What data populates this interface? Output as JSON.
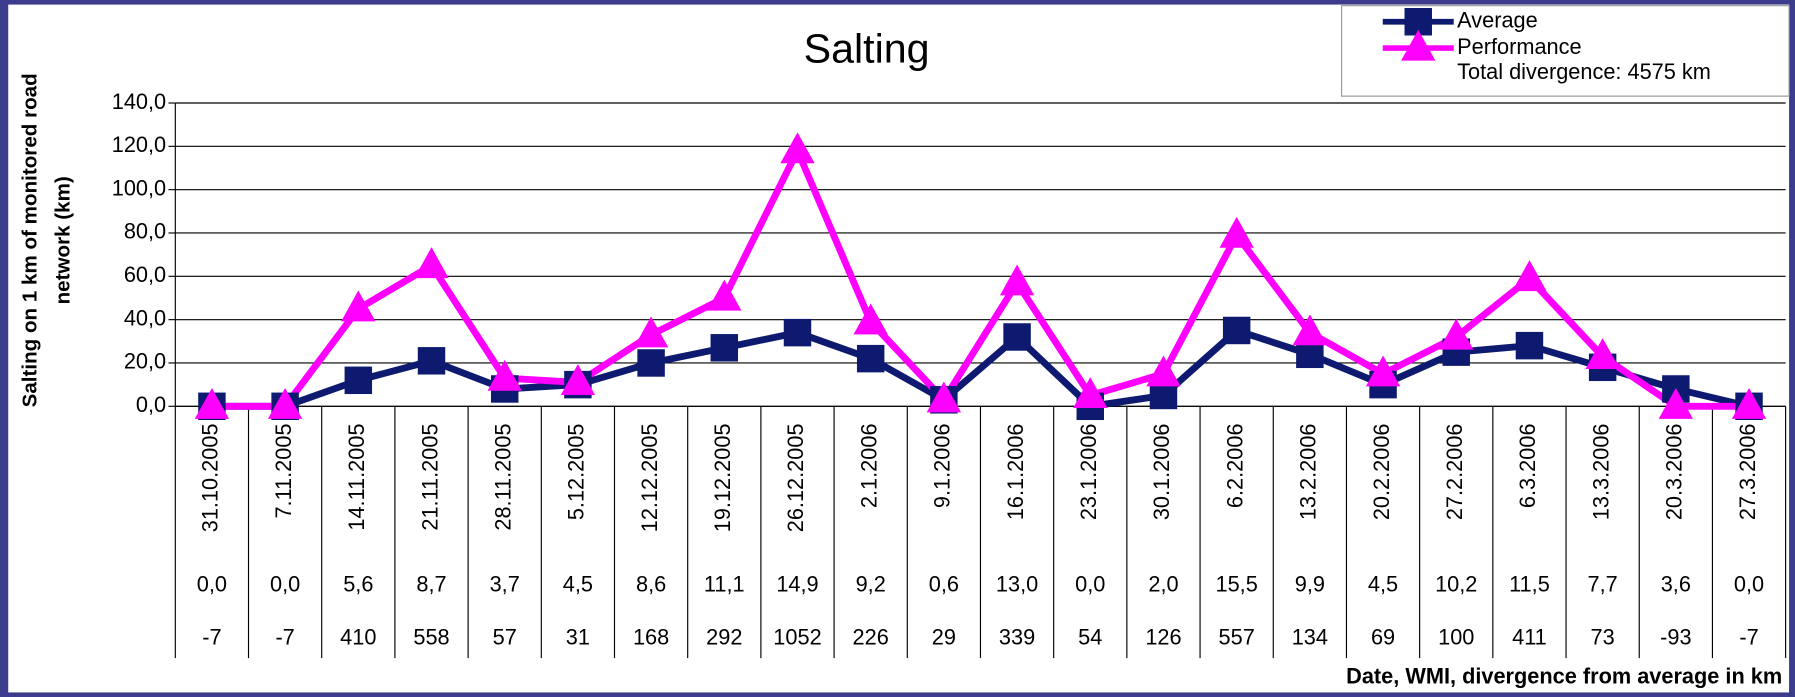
{
  "chart_data": {
    "type": "line",
    "title": "Salting",
    "ylabel": [
      "Salting on 1 km of monitored road",
      "network (km)"
    ],
    "xlabel": "Date, WMI, divergence from average in km",
    "annotation": "Total divergence: 4575 km",
    "categories": [
      "31.10.2005",
      "7.11.2005",
      "14.11.2005",
      "21.11.2005",
      "28.11.2005",
      "5.12.2005",
      "12.12.2005",
      "19.12.2005",
      "26.12.2005",
      "2.1.2006",
      "9.1.2006",
      "16.1.2006",
      "23.1.2006",
      "30.1.2006",
      "6.2.2006",
      "13.2.2006",
      "20.2.2006",
      "27.2.2006",
      "6.3.2006",
      "13.3.2006",
      "20.3.2006",
      "27.3.2006"
    ],
    "wmi": [
      "0,0",
      "0,0",
      "5,6",
      "8,7",
      "3,7",
      "4,5",
      "8,6",
      "11,1",
      "14,9",
      "9,2",
      "0,6",
      "13,0",
      "0,0",
      "2,0",
      "15,5",
      "9,9",
      "4,5",
      "10,2",
      "11,5",
      "7,7",
      "3,6",
      "0,0"
    ],
    "divergence": [
      -7,
      -7,
      410,
      558,
      57,
      31,
      168,
      292,
      1052,
      226,
      29,
      339,
      54,
      126,
      557,
      134,
      69,
      100,
      411,
      73,
      -93,
      -7
    ],
    "series": [
      {
        "name": "Average",
        "color": "#0d1a70",
        "marker": "square",
        "values": [
          0,
          0,
          12,
          21,
          8,
          10,
          20,
          27,
          34,
          22,
          3,
          32,
          0,
          5,
          35,
          24,
          10,
          25,
          28,
          18,
          8,
          0
        ]
      },
      {
        "name": "Performance",
        "color": "#ff00ff",
        "marker": "triangle",
        "values": [
          0,
          0,
          45,
          65,
          13,
          11,
          33,
          50,
          118,
          39,
          3,
          57,
          5,
          15,
          79,
          34,
          15,
          32,
          59,
          23,
          0,
          0
        ]
      }
    ],
    "ylim": [
      0,
      140
    ],
    "yticks": [
      {
        "value": 0,
        "label": "0,0"
      },
      {
        "value": 20,
        "label": "20,0"
      },
      {
        "value": 40,
        "label": "40,0"
      },
      {
        "value": 60,
        "label": "60,0"
      },
      {
        "value": 80,
        "label": "80,0"
      },
      {
        "value": 100,
        "label": "100,0"
      },
      {
        "value": 120,
        "label": "120,0"
      },
      {
        "value": 140,
        "label": "140,0"
      }
    ],
    "grid": true
  }
}
